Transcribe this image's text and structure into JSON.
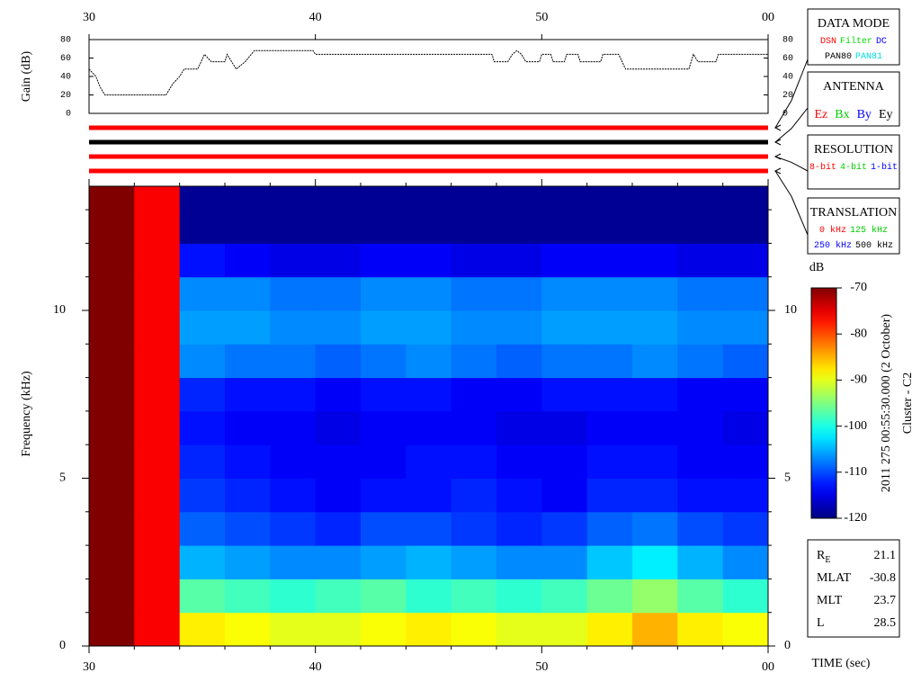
{
  "chart_data": [
    {
      "type": "line",
      "y_label": "Gain (dB)",
      "x": [
        30.0,
        30.3,
        30.5,
        30.7,
        33.4,
        33.7,
        34.0,
        34.2,
        34.8,
        35.1,
        35.4,
        36.0,
        36.1,
        36.5,
        36.9,
        37.3,
        39.9,
        40.0,
        47.8,
        47.9,
        48.5,
        48.7,
        48.9,
        49.1,
        49.3,
        49.9,
        50.0,
        50.4,
        50.5,
        51.0,
        51.1,
        51.6,
        51.7,
        52.6,
        52.7,
        53.4,
        53.7,
        56.5,
        56.6,
        56.7,
        56.9,
        57.7,
        57.8,
        60.0
      ],
      "values": [
        48,
        40,
        28,
        20,
        20,
        32,
        40,
        48,
        48,
        64,
        56,
        56,
        64,
        48,
        56,
        68,
        68,
        64,
        64,
        56,
        56,
        64,
        68,
        64,
        56,
        56,
        64,
        64,
        56,
        56,
        64,
        64,
        56,
        56,
        64,
        64,
        48,
        48,
        56,
        64,
        56,
        56,
        64,
        64
      ],
      "color": "#000000",
      "xlim": [
        30,
        60
      ],
      "xticks": [
        30,
        40,
        50,
        {
          "value": 60,
          "label": "00"
        }
      ],
      "ylim": [
        0,
        80
      ],
      "yticks": [
        0,
        20,
        40,
        60,
        80
      ]
    },
    {
      "type": "heatmap",
      "y_label": "Frequency (kHz)",
      "x_label": "TIME (sec)",
      "xbins": [
        30,
        32,
        34,
        36,
        38,
        40,
        42,
        44,
        46,
        48,
        50,
        52,
        54,
        56,
        58,
        60
      ],
      "ybins": [
        0,
        1,
        2,
        3,
        4,
        5,
        6,
        7,
        8,
        9,
        10,
        11,
        12,
        13,
        13.7
      ],
      "z": [
        [
          -70,
          -76,
          -88,
          -89,
          -90,
          -90,
          -89,
          -88,
          -89,
          -90,
          -90,
          -88,
          -85,
          -88,
          -89
        ],
        [
          -70,
          -76,
          -97,
          -98,
          -99,
          -98,
          -97,
          -99,
          -98,
          -99,
          -98,
          -96,
          -94,
          -97,
          -99
        ],
        [
          -70,
          -76,
          -105,
          -106,
          -107,
          -107,
          -106,
          -105,
          -106,
          -107,
          -107,
          -104,
          -102,
          -105,
          -107
        ],
        [
          -70,
          -76,
          -109,
          -110,
          -111,
          -112,
          -110,
          -110,
          -111,
          -112,
          -111,
          -109,
          -108,
          -110,
          -111
        ],
        [
          -70,
          -76,
          -111,
          -112,
          -113,
          -114,
          -113,
          -113,
          -112,
          -113,
          -114,
          -112,
          -112,
          -113,
          -113
        ],
        [
          -70,
          -76,
          -112,
          -113,
          -114,
          -114,
          -114,
          -113,
          -113,
          -114,
          -114,
          -113,
          -113,
          -114,
          -114
        ],
        [
          -70,
          -76,
          -113,
          -114,
          -114,
          -115,
          -114,
          -114,
          -114,
          -115,
          -115,
          -114,
          -114,
          -114,
          -115
        ],
        [
          -70,
          -76,
          -112,
          -113,
          -113,
          -114,
          -113,
          -113,
          -114,
          -114,
          -113,
          -113,
          -113,
          -114,
          -114
        ],
        [
          -70,
          -76,
          -107,
          -108,
          -108,
          -109,
          -108,
          -107,
          -108,
          -109,
          -108,
          -108,
          -107,
          -108,
          -109
        ],
        [
          -70,
          -76,
          -106,
          -106,
          -107,
          -107,
          -106,
          -106,
          -107,
          -107,
          -106,
          -106,
          -106,
          -107,
          -107
        ],
        [
          -70,
          -76,
          -107,
          -107,
          -108,
          -108,
          -107,
          -107,
          -108,
          -108,
          -107,
          -107,
          -107,
          -108,
          -108
        ],
        [
          -70,
          -76,
          -113,
          -114,
          -115,
          -115,
          -114,
          -114,
          -115,
          -115,
          -114,
          -114,
          -114,
          -115,
          -115
        ],
        [
          -70,
          -76,
          -119,
          -119,
          -119,
          -119,
          -119,
          -119,
          -119,
          -119,
          -119,
          -119,
          -119,
          -119,
          -119
        ],
        [
          -70,
          -76,
          -119,
          -119,
          -119,
          -119,
          -119,
          -119,
          -119,
          -119,
          -119,
          -119,
          -119,
          -119,
          -119
        ]
      ],
      "xlim": [
        30,
        60
      ],
      "xticks": [
        30,
        40,
        50,
        {
          "value": 60,
          "label": "00"
        }
      ],
      "minor_xticks": [
        32,
        34,
        36,
        38,
        42,
        44,
        46,
        48,
        52,
        54,
        56,
        58
      ],
      "ylim": [
        0,
        13.7
      ],
      "yticks": [
        0,
        5,
        10
      ],
      "minor_yticks": [
        1,
        2,
        3,
        4,
        6,
        7,
        8,
        9,
        11,
        12,
        13
      ],
      "colorbar": {
        "label": "dB",
        "lim": [
          -120,
          -70
        ],
        "ticks": [
          -70,
          -80,
          -90,
          -100,
          -110,
          -120
        ]
      }
    }
  ],
  "side_text": [
    "2011 275 00:55:30.000 (2 October)",
    "Cluster - C2"
  ],
  "data_mode": {
    "title": "DATA MODE",
    "indicator_color": "#ff0000",
    "items": [
      {
        "text": "DSN",
        "color": "#ff0000"
      },
      {
        "text": "Filter",
        "color": "#00dd00"
      },
      {
        "text": "DC",
        "color": "#0000ff"
      },
      {
        "text": "PAN80",
        "color": "#000000"
      },
      {
        "text": "PAN81",
        "color": "#00dddd"
      }
    ]
  },
  "antenna": {
    "title": "ANTENNA",
    "indicator_color": "#000000",
    "items": [
      {
        "text": "Ez",
        "color": "#ff0000"
      },
      {
        "text": "Bx",
        "color": "#00cc00"
      },
      {
        "text": "By",
        "color": "#0000ff"
      },
      {
        "text": "Ey",
        "color": "#000000"
      }
    ]
  },
  "resolution": {
    "title": "RESOLUTION",
    "indicator_color": "#ff0000",
    "items": [
      {
        "text": "8-bit",
        "color": "#ff0000"
      },
      {
        "text": "4-bit",
        "color": "#00cc00"
      },
      {
        "text": "1-bit",
        "color": "#0000ff"
      }
    ]
  },
  "translation": {
    "title": "TRANSLATION",
    "indicator_color": "#ff0000",
    "items": [
      {
        "text": "0 kHz",
        "color": "#ff0000"
      },
      {
        "text": "125 kHz",
        "color": "#00cc00"
      },
      {
        "text": "250 kHz",
        "color": "#0000ff"
      },
      {
        "text": "500 kHz",
        "color": "#000000"
      }
    ]
  },
  "info": [
    {
      "label": "R",
      "sub": "E",
      "value": "21.1"
    },
    {
      "label": "MLAT",
      "value": "-30.8"
    },
    {
      "label": "MLT",
      "value": "23.7"
    },
    {
      "label": "L",
      "value": "28.5"
    }
  ]
}
